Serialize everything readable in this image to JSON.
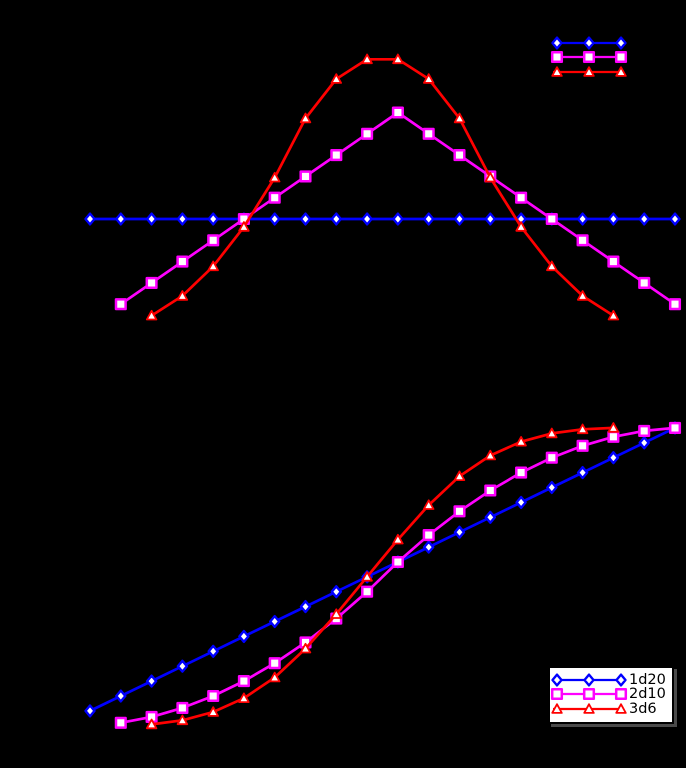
{
  "figure": {
    "background": "#000000"
  },
  "series": [
    {
      "id": "1d20",
      "label": "1d20",
      "color": "#0000ff",
      "marker": "diamond"
    },
    {
      "id": "2d10",
      "label": "2d10",
      "color": "#ff00ff",
      "marker": "square"
    },
    {
      "id": "3d6",
      "label": "3d6",
      "color": "#ff0000",
      "marker": "triangle"
    }
  ],
  "legends": {
    "pmf": {
      "location": "upper-right",
      "labels_visible": false,
      "frame_visible": false
    },
    "cdf": {
      "location": "lower-right",
      "labels_visible": true,
      "frame_visible": true,
      "frame_color": "#000000",
      "frame_fill": "#ffffff"
    }
  },
  "chart_data": [
    {
      "type": "line",
      "name": "probability-mass",
      "title": "",
      "xlabel": "",
      "ylabel": "",
      "xlim": [
        1,
        20
      ],
      "ylim": [
        0,
        0.14
      ],
      "grid": false,
      "legend_position": "upper-right",
      "series": [
        {
          "name": "1d20",
          "color": "#0000ff",
          "marker": "diamond",
          "x": [
            1,
            2,
            3,
            4,
            5,
            6,
            7,
            8,
            9,
            10,
            11,
            12,
            13,
            14,
            15,
            16,
            17,
            18,
            19,
            20
          ],
          "y": [
            0.05,
            0.05,
            0.05,
            0.05,
            0.05,
            0.05,
            0.05,
            0.05,
            0.05,
            0.05,
            0.05,
            0.05,
            0.05,
            0.05,
            0.05,
            0.05,
            0.05,
            0.05,
            0.05,
            0.05
          ]
        },
        {
          "name": "2d10",
          "color": "#ff00ff",
          "marker": "square",
          "x": [
            2,
            3,
            4,
            5,
            6,
            7,
            8,
            9,
            10,
            11,
            12,
            13,
            14,
            15,
            16,
            17,
            18,
            19,
            20
          ],
          "y": [
            0.01,
            0.02,
            0.03,
            0.04,
            0.05,
            0.06,
            0.07,
            0.08,
            0.09,
            0.1,
            0.09,
            0.08,
            0.07,
            0.06,
            0.05,
            0.04,
            0.03,
            0.02,
            0.01
          ]
        },
        {
          "name": "3d6",
          "color": "#ff0000",
          "marker": "triangle",
          "x": [
            3,
            4,
            5,
            6,
            7,
            8,
            9,
            10,
            11,
            12,
            13,
            14,
            15,
            16,
            17,
            18
          ],
          "y": [
            0.00463,
            0.01389,
            0.02778,
            0.0463,
            0.06944,
            0.09722,
            0.11574,
            0.125,
            0.125,
            0.11574,
            0.09722,
            0.06944,
            0.0463,
            0.02778,
            0.01389,
            0.00463
          ]
        }
      ]
    },
    {
      "type": "line",
      "name": "cumulative-probability",
      "title": "",
      "xlabel": "",
      "ylabel": "",
      "xlim": [
        1,
        20
      ],
      "ylim": [
        0,
        1
      ],
      "grid": false,
      "legend_position": "lower-right",
      "series": [
        {
          "name": "1d20",
          "color": "#0000ff",
          "marker": "diamond",
          "x": [
            1,
            2,
            3,
            4,
            5,
            6,
            7,
            8,
            9,
            10,
            11,
            12,
            13,
            14,
            15,
            16,
            17,
            18,
            19,
            20
          ],
          "y": [
            0.05,
            0.1,
            0.15,
            0.2,
            0.25,
            0.3,
            0.35,
            0.4,
            0.45,
            0.5,
            0.55,
            0.6,
            0.65,
            0.7,
            0.75,
            0.8,
            0.85,
            0.9,
            0.95,
            1.0
          ]
        },
        {
          "name": "2d10",
          "color": "#ff00ff",
          "marker": "square",
          "x": [
            2,
            3,
            4,
            5,
            6,
            7,
            8,
            9,
            10,
            11,
            12,
            13,
            14,
            15,
            16,
            17,
            18,
            19,
            20
          ],
          "y": [
            0.01,
            0.03,
            0.06,
            0.1,
            0.15,
            0.21,
            0.28,
            0.36,
            0.45,
            0.55,
            0.64,
            0.72,
            0.79,
            0.85,
            0.9,
            0.94,
            0.97,
            0.99,
            1.0
          ]
        },
        {
          "name": "3d6",
          "color": "#ff0000",
          "marker": "triangle",
          "x": [
            3,
            4,
            5,
            6,
            7,
            8,
            9,
            10,
            11,
            12,
            13,
            14,
            15,
            16,
            17,
            18
          ],
          "y": [
            0.00463,
            0.01852,
            0.0463,
            0.09259,
            0.16204,
            0.25926,
            0.375,
            0.5,
            0.625,
            0.74074,
            0.83796,
            0.90741,
            0.9537,
            0.98148,
            0.99537,
            1.0
          ]
        }
      ]
    }
  ]
}
